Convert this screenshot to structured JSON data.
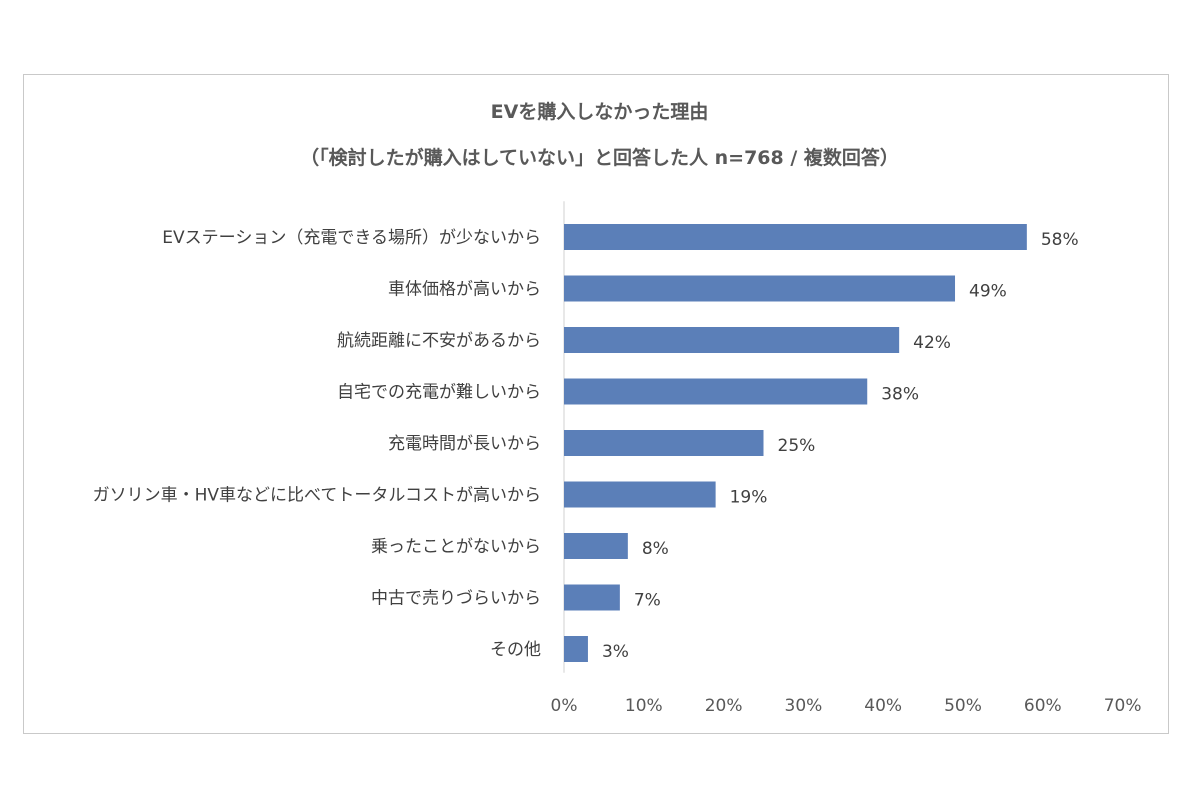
{
  "chart_data": {
    "type": "bar",
    "orientation": "horizontal",
    "title": "EVを購入しなかった理由",
    "subtitle": "（「検討したが購入はしていない」と回答した人 n=768 / 複数回答）",
    "categories": [
      "EVステーション（充電できる場所）が少ないから",
      "車体価格が高いから",
      "航続距離に不安があるから",
      "自宅での充電が難しいから",
      "充電時間が長いから",
      "ガソリン車・HV車などに比べてトータルコストが高いから",
      "乗ったことがないから",
      "中古で売りづらいから",
      "その他"
    ],
    "values": [
      58,
      49,
      42,
      38,
      25,
      19,
      8,
      7,
      3
    ],
    "value_labels": [
      "58%",
      "49%",
      "42%",
      "38%",
      "25%",
      "19%",
      "8%",
      "7%",
      "3%"
    ],
    "xlim": [
      0,
      70
    ],
    "xticks": [
      "0%",
      "10%",
      "20%",
      "30%",
      "40%",
      "50%",
      "60%",
      "70%"
    ],
    "bar_color": "#5b7fb8",
    "grid": false,
    "legend": "none"
  }
}
